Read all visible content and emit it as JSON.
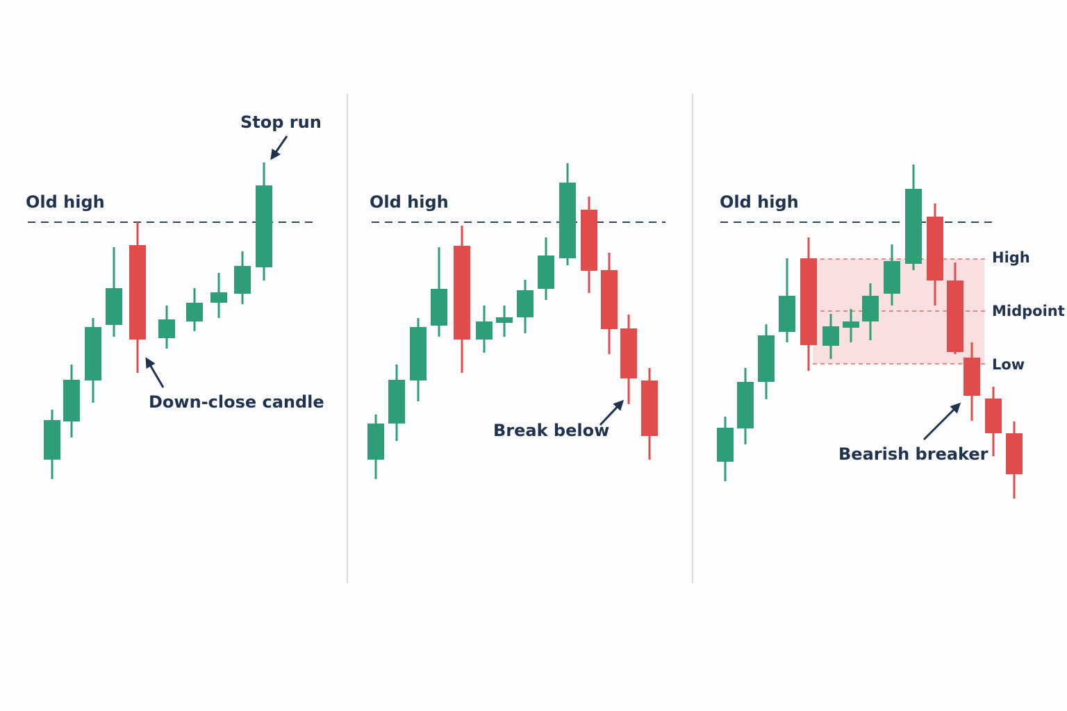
{
  "panels": [
    {
      "level_label": "Old high",
      "annotations": [
        "Stop run",
        "Down-close candle"
      ]
    },
    {
      "level_label": "Old high",
      "annotations": [
        "Break below"
      ]
    },
    {
      "level_label": "Old high",
      "annotations": [
        "Bearish breaker"
      ],
      "zone_labels": [
        "High",
        "Midpoint",
        "Low"
      ]
    }
  ]
}
